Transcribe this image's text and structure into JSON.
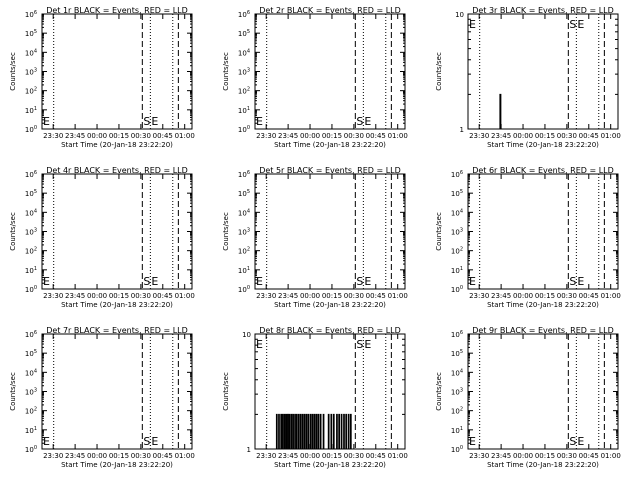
{
  "colors": {
    "background": "#ffffff",
    "foreground": "#000000"
  },
  "common": {
    "ylabel": "Counts/sec",
    "xlabel": "Start Time (20-Jan-18 23:22:20)",
    "x_ticks": [
      "23:30",
      "23:45",
      "00:00",
      "00:15",
      "00:30",
      "00:45",
      "01:00"
    ],
    "y_ticks_log6": [
      "10^0",
      "10^1",
      "10^2",
      "10^3",
      "10^4",
      "10^5",
      "10^6"
    ],
    "y_ticks_log1": [
      "1",
      "10"
    ],
    "x_range": [
      "23:22:20",
      "01:05:00"
    ],
    "marker_labels": {
      "start": "S",
      "end": "E",
      "left_edge": "E"
    }
  },
  "chart_data": [
    {
      "id": "det1r",
      "type": "line",
      "title": "Det 1r BLACK = Events, RED = LLD",
      "yscale": "log",
      "ylim": [
        1,
        1000000
      ],
      "ytick_set": "log6",
      "events": [],
      "marker_labels_at": "bottom"
    },
    {
      "id": "det2r",
      "type": "line",
      "title": "Det 2r BLACK = Events, RED = LLD",
      "yscale": "log",
      "ylim": [
        1,
        1000000
      ],
      "ytick_set": "log6",
      "events": [],
      "marker_labels_at": "bottom"
    },
    {
      "id": "det3r",
      "type": "line",
      "title": "Det 3r BLACK = Events, RED = LLD",
      "yscale": "log",
      "ylim": [
        1,
        10
      ],
      "ytick_set": "log1",
      "events": [
        [
          "23:44:10",
          "23:44:50"
        ]
      ],
      "event_peak": 2,
      "event_base": 1.5,
      "marker_labels_at": "top"
    },
    {
      "id": "det4r",
      "type": "line",
      "title": "Det 4r BLACK = Events, RED = LLD",
      "yscale": "log",
      "ylim": [
        1,
        1000000
      ],
      "ytick_set": "log6",
      "events": [],
      "marker_labels_at": "bottom"
    },
    {
      "id": "det5r",
      "type": "line",
      "title": "Det 5r BLACK = Events, RED = LLD",
      "yscale": "log",
      "ylim": [
        1,
        1000000
      ],
      "ytick_set": "log6",
      "events": [],
      "marker_labels_at": "bottom"
    },
    {
      "id": "det6r",
      "type": "line",
      "title": "Det 6r BLACK = Events, RED = LLD",
      "yscale": "log",
      "ylim": [
        1,
        1000000
      ],
      "ytick_set": "log6",
      "events": [],
      "marker_labels_at": "bottom"
    },
    {
      "id": "det7r",
      "type": "line",
      "title": "Det 7r BLACK = Events, RED = LLD",
      "yscale": "log",
      "ylim": [
        1,
        1000000
      ],
      "ytick_set": "log6",
      "events": [],
      "marker_labels_at": "bottom"
    },
    {
      "id": "det8r",
      "type": "line",
      "title": "Det 8r BLACK = Events, RED = LLD",
      "yscale": "log",
      "ylim": [
        1,
        10
      ],
      "ytick_set": "log1",
      "events": [
        [
          "23:37:00",
          "23:37:30"
        ],
        [
          "23:38:30",
          "23:39:00"
        ],
        [
          "23:40:00",
          "23:40:30"
        ],
        [
          "23:41:10",
          "23:41:40"
        ],
        [
          "23:42:20",
          "23:42:50"
        ],
        [
          "23:43:30",
          "23:44:10"
        ],
        [
          "23:44:40",
          "23:45:10"
        ],
        [
          "23:45:40",
          "23:46:10"
        ],
        [
          "23:47:00",
          "23:47:30"
        ],
        [
          "23:48:10",
          "23:48:40"
        ],
        [
          "23:49:30",
          "23:50:00"
        ],
        [
          "23:50:40",
          "23:51:10"
        ],
        [
          "23:52:00",
          "23:52:30"
        ],
        [
          "23:53:20",
          "23:53:50"
        ],
        [
          "23:54:40",
          "23:55:10"
        ],
        [
          "23:56:00",
          "23:56:30"
        ],
        [
          "23:57:20",
          "23:57:50"
        ],
        [
          "23:58:40",
          "23:59:10"
        ],
        [
          "00:00:10",
          "00:00:40"
        ],
        [
          "00:01:30",
          "00:02:00"
        ],
        [
          "00:02:50",
          "00:03:20"
        ],
        [
          "00:04:10",
          "00:04:40"
        ],
        [
          "00:05:30",
          "00:06:00"
        ],
        [
          "00:07:00",
          "00:07:30"
        ],
        [
          "00:09:00",
          "00:09:30"
        ],
        [
          "00:12:30",
          "00:13:00"
        ],
        [
          "00:14:20",
          "00:14:50"
        ],
        [
          "00:16:00",
          "00:16:30"
        ],
        [
          "00:18:10",
          "00:18:40"
        ],
        [
          "00:19:40",
          "00:20:10"
        ],
        [
          "00:21:20",
          "00:21:50"
        ],
        [
          "00:23:00",
          "00:23:30"
        ],
        [
          "00:24:30",
          "00:25:00"
        ],
        [
          "00:26:10",
          "00:26:40"
        ],
        [
          "00:27:40",
          "00:28:10"
        ]
      ],
      "event_peak": 2,
      "event_base": 1.5,
      "marker_labels_at": "top"
    },
    {
      "id": "det9r",
      "type": "line",
      "title": "Det 9r BLACK = Events, RED = LLD",
      "yscale": "log",
      "ylim": [
        1,
        1000000
      ],
      "ytick_set": "log6",
      "events": [],
      "marker_labels_at": "bottom"
    }
  ],
  "markers": {
    "dotted_left": "23:30:20",
    "dashed_start": "00:31:00",
    "dotted_mid": "00:36:30",
    "dotted_right": "00:51:50",
    "dashed_end": "00:55:40"
  }
}
